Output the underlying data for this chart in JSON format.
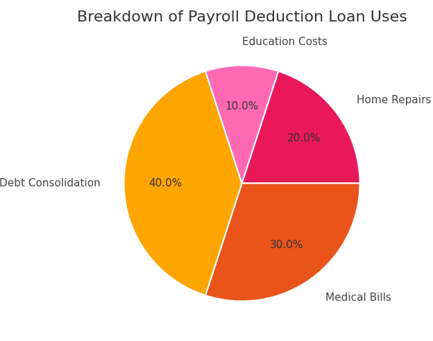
{
  "title": "Breakdown of Payroll Deduction Loan Uses",
  "labels": [
    "Home Repairs",
    "Medical Bills",
    "Debt Consolidation",
    "Education Costs"
  ],
  "values": [
    20.0,
    30.0,
    40.0,
    10.0
  ],
  "colors": [
    "#E8185A",
    "#E8541A",
    "#FFA500",
    "#FF69B4"
  ],
  "startangle": 72,
  "title_fontsize": 16,
  "label_fontsize": 11,
  "autopct_fontsize": 11,
  "label_distance": 1.2,
  "pct_distance": 0.65,
  "background_color": "#ffffff"
}
